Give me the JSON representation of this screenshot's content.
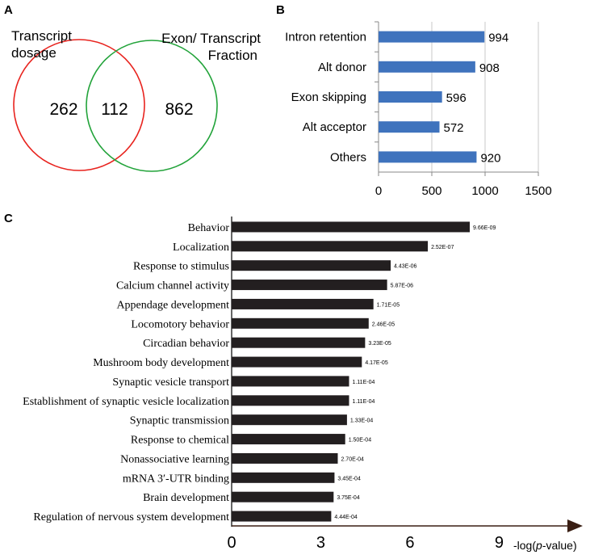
{
  "panel_a": {
    "letter": "A",
    "left_label_line1": "Transcript",
    "left_label_line2": "dosage",
    "right_label_line1": "Exon/ Transcript",
    "right_label_line2": "Fraction",
    "left_only": "262",
    "overlap": "112",
    "right_only": "862",
    "colors": {
      "left": "#e8231e",
      "right": "#22a33a"
    }
  },
  "panel_b": {
    "letter": "B"
  },
  "panel_c": {
    "letter": "C",
    "xlabel_prefix": "-log(",
    "xlabel_italic": "p",
    "xlabel_suffix": "-value)"
  },
  "chart_data": [
    {
      "type": "bar",
      "orientation": "horizontal",
      "panel": "B",
      "categories": [
        "Intron retention",
        "Alt donor",
        "Exon skipping",
        "Alt acceptor",
        "Others"
      ],
      "values": [
        994,
        908,
        596,
        572,
        920
      ],
      "value_labels": [
        "994",
        "908",
        "596",
        "572",
        "920"
      ],
      "xlim": [
        0,
        1500
      ],
      "xticks": [
        0,
        500,
        1000,
        1500
      ],
      "xtick_labels": [
        "0",
        "500",
        "1000",
        "1500"
      ],
      "grid": true,
      "color": "#3f73bd"
    },
    {
      "type": "bar",
      "orientation": "horizontal",
      "panel": "C",
      "categories": [
        "Behavior",
        "Localization",
        "Response to stimulus",
        "Calcium channel activity",
        "Appendage development",
        "Locomotory behavior",
        "Circadian behavior",
        "Mushroom body development",
        "Synaptic vesicle transport",
        "Establishment of synaptic vesicle localization",
        "Synaptic transmission",
        "Response to chemical",
        "Nonassociative learning",
        "mRNA 3′-UTR binding",
        "Brain development",
        "Regulation of nervous system development"
      ],
      "values": [
        8.01,
        6.6,
        5.35,
        5.23,
        4.77,
        4.61,
        4.49,
        4.38,
        3.95,
        3.95,
        3.88,
        3.82,
        3.57,
        3.46,
        3.43,
        3.35
      ],
      "pvalue_labels": [
        "9.66E-09",
        "2.52E-07",
        "4.43E-06",
        "5.87E-06",
        "1.71E-05",
        "2.46E-05",
        "3.23E-05",
        "4.17E-05",
        "1.11E-04",
        "1.11E-04",
        "1.33E-04",
        "1.50E-04",
        "2.70E-04",
        "3.45E-04",
        "3.75E-04",
        "4.44E-04"
      ],
      "xlim": [
        0,
        11.3
      ],
      "xticks": [
        0,
        3,
        6,
        9
      ],
      "xtick_labels": [
        "0",
        "3",
        "6",
        "9"
      ],
      "xlabel": "-log(p-value)",
      "color": "#231f20"
    }
  ]
}
